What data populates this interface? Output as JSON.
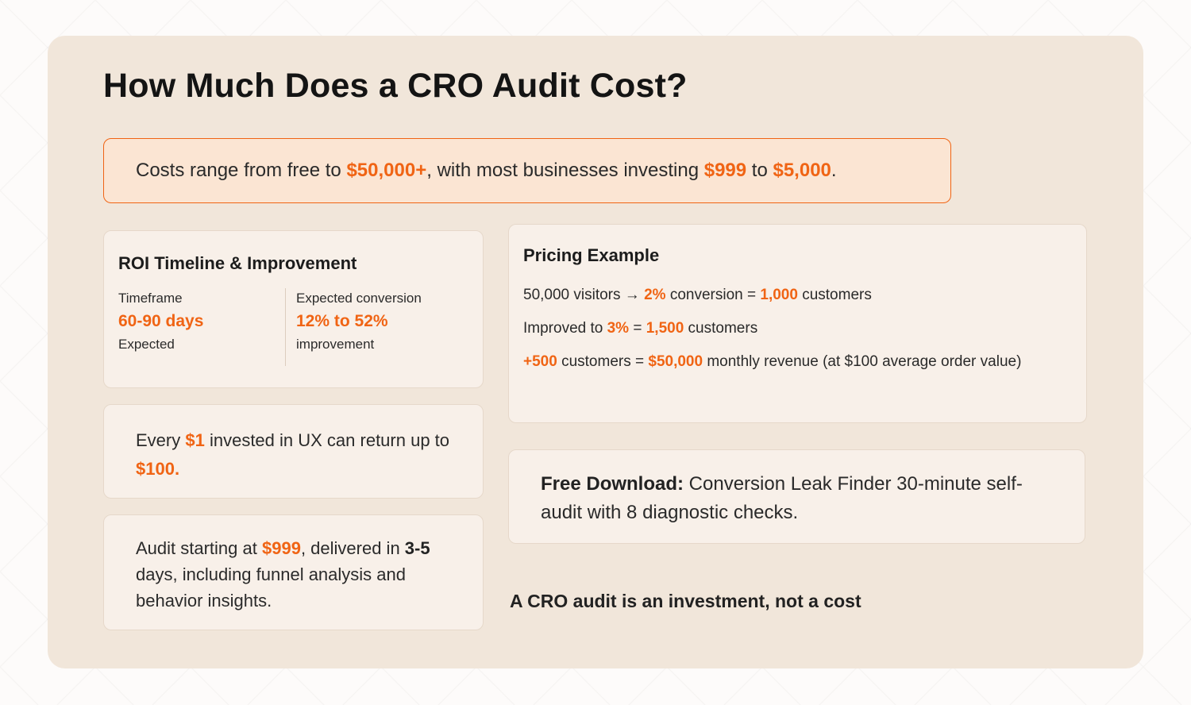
{
  "title": "How Much Does a CRO Audit Cost?",
  "banner": {
    "t1": "Costs range from free to ",
    "h1": "$50,000+",
    "t2": ", with most businesses investing ",
    "h2": "$999",
    "t3": " to ",
    "h3": "$5,000",
    "t4": "."
  },
  "roi": {
    "title": "ROI Timeline & Improvement",
    "col1": {
      "label": "Timeframe",
      "value": "60-90 days",
      "sub": "Expected"
    },
    "col2": {
      "label": "Expected conversion",
      "value": "12% to 52%",
      "sub": "improvement"
    }
  },
  "ux": {
    "t1": "Every ",
    "h1": "$1",
    "t2": " invested in UX can return up to ",
    "h2": "$100."
  },
  "audit": {
    "t1": "Audit starting at ",
    "h1": "$999",
    "t2": ", delivered in ",
    "b1": "3-5",
    "t3": " days, including funnel analysis and behavior insights."
  },
  "pricing": {
    "title": "Pricing Example",
    "line1": {
      "t1": "50,000 visitors → ",
      "h1": "2%",
      "t2": " conversion = ",
      "h2": "1,000",
      "t3": " customers"
    },
    "line2": {
      "t1": "Improved to ",
      "h1": "3%",
      "t2": " = ",
      "h2": "1,500",
      "t3": " customers"
    },
    "line3": {
      "h1": "+500",
      "t1": " customers = ",
      "h2": "$50,000",
      "t2": " monthly revenue (at $100 average order value)"
    }
  },
  "download": {
    "b1": "Free Download:",
    "t1": " Conversion Leak Finder 30-minute self-audit with 8 diagnostic checks."
  },
  "footer": "A CRO audit is an investment, not a cost",
  "colors": {
    "accent": "#f06414",
    "panel": "#f1e6da",
    "card": "#f8f0e9",
    "banner": "#fbe5d3"
  }
}
